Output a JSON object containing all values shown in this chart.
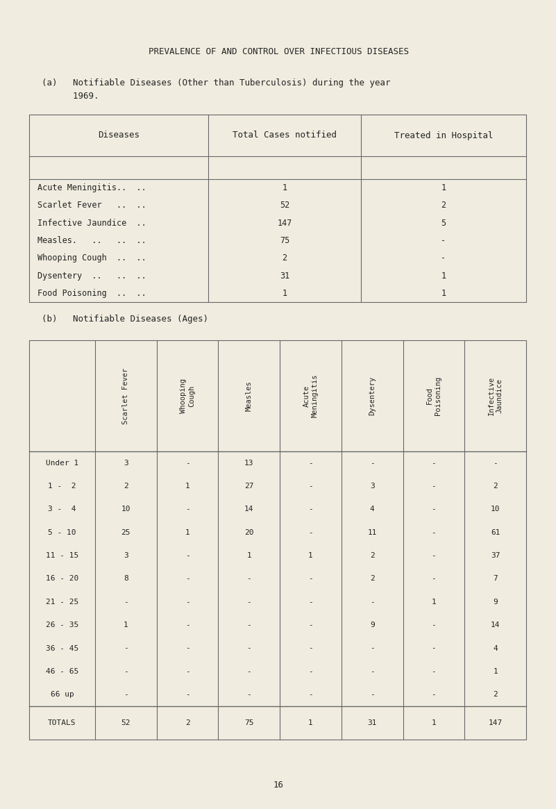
{
  "page_title": "PREVALENCE OF AND CONTROL OVER INFECTIOUS DISEASES",
  "section_a_label": "(a)   Notifiable Diseases (Other than Tuberculosis) during the year",
  "section_a_label2": "      1969.",
  "section_b_label": "(b)   Notifiable Diseases (Ages)",
  "page_number": "16",
  "bg_color": "#f0ede0",
  "text_color": "#222222",
  "line_color": "#666666",
  "table_a": {
    "headers": [
      "Diseases",
      "Total Cases notified",
      "Treated in Hospital"
    ],
    "rows": [
      [
        "Acute Meningitis..  ..",
        "1",
        "1"
      ],
      [
        "Scarlet Fever   ..  ..",
        "52",
        "2"
      ],
      [
        "Infective Jaundice  ..",
        "147",
        "5"
      ],
      [
        "Measles.   ..   ..  ..",
        "75",
        "-"
      ],
      [
        "Whooping Cough  ..  ..",
        "2",
        "-"
      ],
      [
        "Dysentery  ..   ..  ..",
        "31",
        "1"
      ],
      [
        "Food Poisoning  ..  ..",
        "1",
        "1"
      ]
    ]
  },
  "table_b": {
    "col_headers": [
      "Scarlet Fever",
      "Whooping\nCough",
      "Measles",
      "Acute\nMeningitis",
      "Dysentery",
      "Food\nPoisoning",
      "Infective\nJaundice"
    ],
    "row_labels": [
      "Under 1",
      "1 -  2",
      "3 -  4",
      "5 - 10",
      "11 - 15",
      "16 - 20",
      "21 - 25",
      "26 - 35",
      "36 - 45",
      "46 - 65",
      "66 up",
      "TOTALS"
    ],
    "data": [
      [
        "3",
        "-",
        "13",
        "-",
        "-",
        "-",
        "-"
      ],
      [
        "2",
        "1",
        "27",
        "-",
        "3",
        "-",
        "2"
      ],
      [
        "10",
        "-",
        "14",
        "-",
        "4",
        "-",
        "10"
      ],
      [
        "25",
        "1",
        "20",
        "-",
        "11",
        "-",
        "61"
      ],
      [
        "3",
        "-",
        "1",
        "1",
        "2",
        "-",
        "37"
      ],
      [
        "8",
        "-",
        "-",
        "-",
        "2",
        "-",
        "7"
      ],
      [
        "-",
        "-",
        "-",
        "-",
        "-",
        "1",
        "9"
      ],
      [
        "1",
        "-",
        "-",
        "-",
        "9",
        "-",
        "14"
      ],
      [
        "-",
        "-",
        "-",
        "-",
        "-",
        "-",
        "4"
      ],
      [
        "-",
        "-",
        "-",
        "-",
        "-",
        "-",
        "1"
      ],
      [
        "-",
        "-",
        "-",
        "-",
        "-",
        "-",
        "2"
      ],
      [
        "52",
        "2",
        "75",
        "1",
        "31",
        "1",
        "147"
      ]
    ]
  }
}
